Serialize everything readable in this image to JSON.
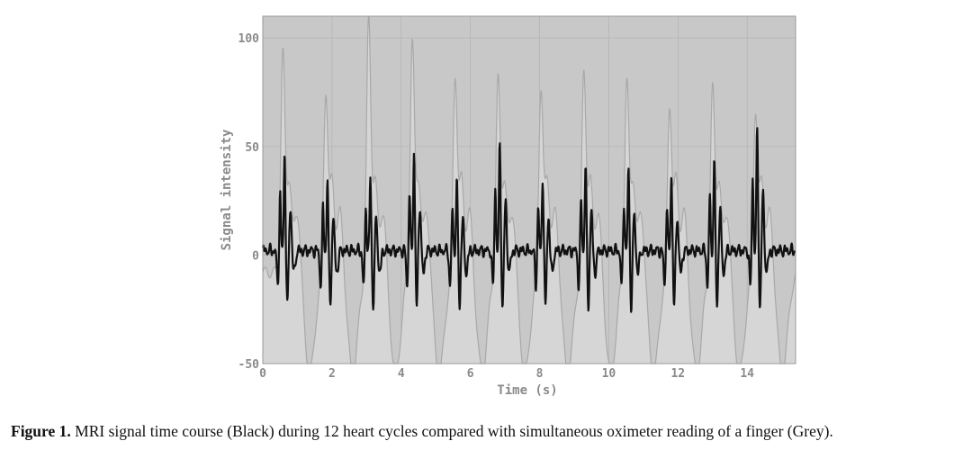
{
  "caption": {
    "label": "Figure 1.",
    "text": "MRI signal time course (Black) during 12 heart cycles compared with simultaneous oximeter reading of a finger (Grey)."
  },
  "chart_data": {
    "type": "line",
    "xlabel": "Time (s)",
    "ylabel": "Signal intensity",
    "xlim": [
      0,
      15.4
    ],
    "ylim": [
      -50,
      110
    ],
    "xticks": [
      0,
      2,
      4,
      6,
      8,
      10,
      12,
      14
    ],
    "yticks": [
      -50,
      0,
      50,
      100
    ],
    "grid": true,
    "colors": {
      "mri": "#111111",
      "oximeter_line": "#a8a8a8",
      "oximeter_fill": "#d6d6d6",
      "background": "#c8c8c8"
    },
    "beats": [
      0.58,
      1.82,
      3.06,
      4.32,
      5.56,
      6.8,
      8.04,
      9.28,
      10.52,
      11.76,
      13.0,
      14.24
    ],
    "mri_peaks": [
      45,
      32,
      33,
      46,
      32,
      50,
      34,
      40,
      38,
      35,
      42,
      57
    ],
    "oximeter_peaks": [
      92,
      75,
      108,
      98,
      82,
      80,
      77,
      83,
      80,
      68,
      76,
      66
    ],
    "series": [
      {
        "name": "MRI signal time course (Black)"
      },
      {
        "name": "oximeter reading of a finger (Grey)"
      }
    ]
  }
}
